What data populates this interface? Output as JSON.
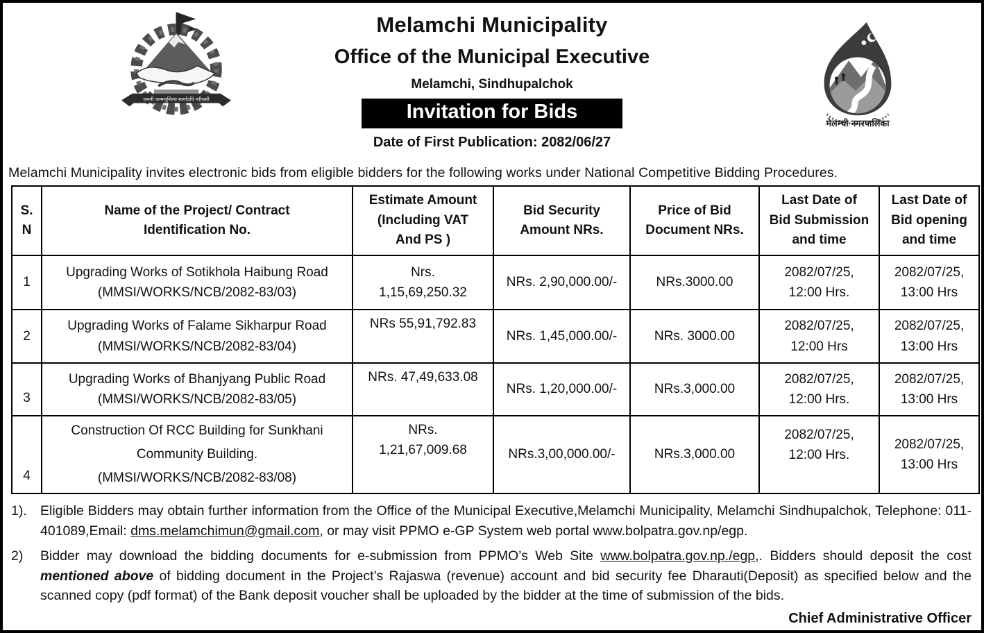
{
  "page": {
    "title": "Melamchi Municipality",
    "subtitle": "Office of the Municipal Executive",
    "location": "Melamchi, Sindhupalchok",
    "banner": "Invitation for Bids",
    "publication_date": "Date of First Publication: 2082/06/27",
    "intro": "Melamchi Municipality invites electronic bids from eligible bidders for the following works under National Competitive Bidding Procedures.",
    "signature": "Chief Administrative Officer"
  },
  "logos": {
    "left_name": "nepal-government-emblem",
    "left_motto": "जननी जन्मभूमिश्च स्वर्गादपि गरीयसी",
    "right_name": "melamchi-municipality-logo",
    "right_caption": "मेलम्ची नगरपालिका"
  },
  "colors": {
    "ink": "#111111",
    "banner_bg": "#000000",
    "banner_fg": "#ffffff"
  },
  "table": {
    "headers": [
      "S.\nN",
      "Name of the Project/ Contract\nIdentification  No.",
      "Estimate Amount\n(Including VAT\nAnd PS )",
      "Bid Security\nAmount NRs.",
      "Price of Bid\nDocument NRs.",
      "Last Date of\nBid Submission\nand time",
      "Last Date of\nBid opening\nand time"
    ],
    "rows": [
      {
        "sn": "1",
        "name": "Upgrading Works of  Sotikhola Haibung Road\n(MMSI/WORKS/NCB/2082-83/03)",
        "estimate": "Nrs.\n1,15,69,250.32",
        "security": "NRs. 2,90,000.00/-",
        "price": "NRs.3000.00",
        "submission": "2082/07/25,\n12:00 Hrs.",
        "opening": "2082/07/25,\n13:00 Hrs"
      },
      {
        "sn": "2",
        "name": "Upgrading Works of Falame Sikharpur Road\n(MMSI/WORKS/NCB/2082-83/04)",
        "estimate": "NRs 55,91,792.83",
        "security": "NRs. 1,45,000.00/-",
        "price": "NRs. 3000.00",
        "submission": "2082/07/25,\n12:00 Hrs",
        "opening": "2082/07/25,\n13:00 Hrs"
      },
      {
        "sn": "3",
        "name": "Upgrading Works of Bhanjyang Public Road\n(MMSI/WORKS/NCB/2082-83/05)",
        "estimate": "NRs. 47,49,633.08",
        "security": "NRs. 1,20,000.00/-",
        "price": "NRs.3,000.00",
        "submission": "2082/07/25,\n12:00 Hrs.",
        "opening": "2082/07/25,\n13:00 Hrs"
      },
      {
        "sn": "4",
        "name": "Construction Of RCC Building for Sunkhani\nCommunity Building.\n(MMSI/WORKS/NCB/2082-83/08)",
        "estimate": "NRs.\n1,21,67,009.68",
        "security": "NRs.3,00,000.00/-",
        "price": "NRs.3,000.00",
        "submission": "2082/07/25,\n12:00 Hrs.",
        "opening": "2082/07/25,\n13:00 Hrs"
      }
    ]
  },
  "notes": [
    {
      "num": "1).",
      "parts": [
        {
          "t": "Eligible Bidders may obtain further information from the Office of the Municipal Executive,Melamchi Municipality, Melamchi Sindhupalchok, Telephone: 011- 401089,Email: "
        },
        {
          "t": "dms.melamchimun@gmail.com",
          "s": "underline"
        },
        {
          "t": ", or may visit PPMO e-GP System  web portal www.bolpatra.gov.np/egp."
        }
      ]
    },
    {
      "num": "2)",
      "parts": [
        {
          "t": "Bidder may download the bidding documents for e-submission from PPMO’s Web Site "
        },
        {
          "t": "www.bolpatra.gov.np./egp",
          "s": "underline"
        },
        {
          "t": ",. Bidders should deposit the cost "
        },
        {
          "t": "mentioned above",
          "s": "bolditalic"
        },
        {
          "t": " of bidding document in the Project’s Rajaswa (revenue) account and bid security fee Dharauti(Deposit) as specified below and the scanned copy (pdf format) of the Bank deposit voucher shall be uploaded by the bidder at the time of submission of the bids."
        }
      ]
    }
  ]
}
